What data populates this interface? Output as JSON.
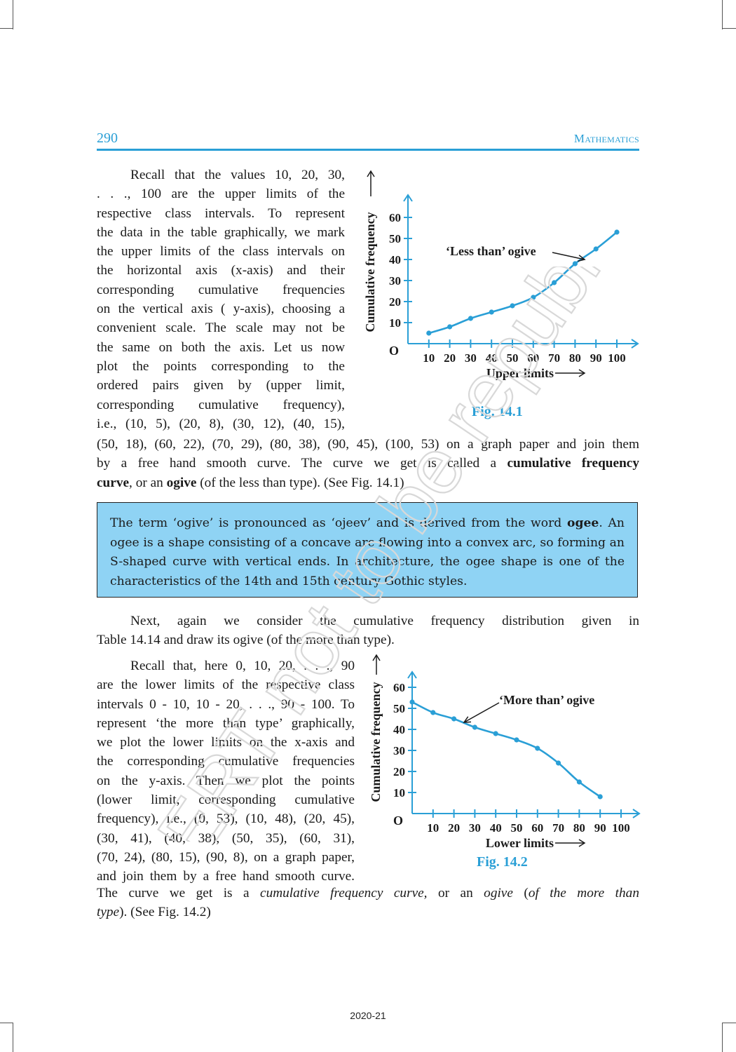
{
  "header": {
    "page_number": "290",
    "running_head": "Mathematics"
  },
  "para1": {
    "wrapped_lines": [
      "Recall that the values 10, 20, 30,",
      ". . ., 100 are the upper limits of the",
      "respective class intervals. To represent",
      "the data in the table graphically, we mark",
      "the upper limits of the class intervals on",
      "the horizontal axis (x-axis) and their",
      "corresponding cumulative frequencies",
      "on the vertical axis ( y-axis), choosing a",
      "convenient scale. The scale may not be",
      "the same on both the axis. Let us now",
      "plot the points corresponding to the",
      "ordered pairs given by (upper limit,",
      "corresponding cumulative frequency),",
      "i.e., (10, 5), (20, 8), (30, 12), (40, 15),"
    ],
    "full_line": "(50, 18), (60, 22), (70, 29), (80, 38), (90, 45), (100, 53) on a graph paper and join them",
    "line2_pre": "by a free hand smooth curve. The curve we get is called a ",
    "line2_bold": "cumulative frequency",
    "line3_bold1": "curve",
    "line3_mid": ", or an ",
    "line3_bold2": "ogive",
    "line3_post": " (of the less than type). (See Fig. 14.1)"
  },
  "note": {
    "pre": "The term ‘ogive’ is pronounced as ‘ojeev’ and is derived from the word ",
    "bold": "ogee",
    "post": ". An ogee is a shape consisting of a concave arc flowing into a convex arc, so forming an S-shaped curve with vertical ends. In architecture, the ogee shape is one of the characteristics of the 14th and 15th century Gothic styles."
  },
  "para2": {
    "line1": "Next, again we consider the cumulative frequency distribution given in",
    "line2": "Table 14.14 and draw its ogive (of the more than type)."
  },
  "para3": {
    "wrapped_lines": [
      "Recall that, here 0, 10, 20, . . ., 90",
      "are the lower limits of the respective class",
      "intervals 0 - 10, 10 - 20, . . ., 90 - 100. To",
      "represent ‘the more than type’ graphically,",
      "we plot the lower limits on the x-axis and",
      "the corresponding cumulative frequencies",
      "on the y-axis. Then we plot the points",
      "(lower limit, corresponding cumulative",
      "frequency), i.e., (0, 53), (10, 48), (20, 45),",
      "(30, 41), (40, 38), (50, 35), (60, 31),",
      "(70, 24), (80, 15), (90, 8), on a graph paper,",
      "and join them by a free hand smooth curve."
    ],
    "line_a_pre": "The curve we get is a ",
    "line_a_it1": "cumulative frequency curve,",
    "line_a_mid": " or an ",
    "line_a_it2": "ogive",
    "line_a_mid2": " (",
    "line_a_it3": "of the more than",
    "line_b_it": "type",
    "line_b_post": "). (See Fig. 14.2)"
  },
  "chart_data": [
    {
      "type": "line",
      "caption": "Fig. 14.1",
      "xlabel": "Upper limits",
      "ylabel": "Cumulative frequency",
      "origin_label": "O",
      "annotation": "‘Less than’ ogive",
      "x_ticks": [
        "10",
        "20",
        "30",
        "40",
        "50",
        "60",
        "70",
        "80",
        "90",
        "100"
      ],
      "y_ticks": [
        "10",
        "20",
        "30",
        "40",
        "50",
        "60"
      ],
      "xlim": [
        0,
        100
      ],
      "ylim": [
        0,
        60
      ],
      "x": [
        10,
        20,
        30,
        40,
        50,
        60,
        70,
        80,
        90,
        100
      ],
      "y": [
        5,
        8,
        12,
        15,
        18,
        22,
        29,
        38,
        45,
        53
      ],
      "color": "#2a9fd6"
    },
    {
      "type": "line",
      "caption": "Fig. 14.2",
      "xlabel": "Lower limits",
      "ylabel": "Cumulative frequency",
      "origin_label": "O",
      "annotation": "‘More than’ ogive",
      "x_ticks": [
        "10",
        "20",
        "30",
        "40",
        "50",
        "60",
        "70",
        "80",
        "90",
        "100"
      ],
      "y_ticks": [
        "10",
        "20",
        "30",
        "40",
        "50",
        "60"
      ],
      "xlim": [
        0,
        100
      ],
      "ylim": [
        0,
        60
      ],
      "x": [
        0,
        10,
        20,
        30,
        40,
        50,
        60,
        70,
        80,
        90
      ],
      "y": [
        53,
        48,
        45,
        41,
        38,
        35,
        31,
        24,
        15,
        8
      ],
      "color": "#2a9fd6"
    }
  ],
  "watermark": "© NCERT not to be republished",
  "footer": "2020-21"
}
